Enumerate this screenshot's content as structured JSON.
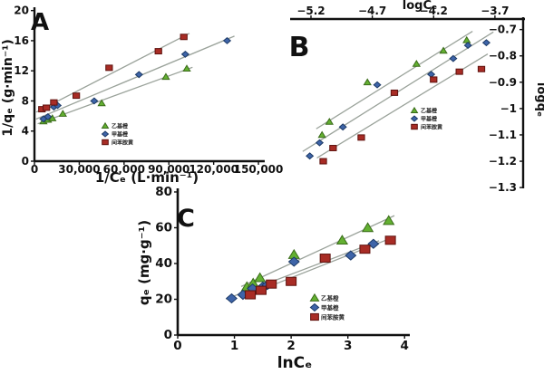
{
  "palette": {
    "axis": "#111111",
    "trendline": "#9aa29a",
    "green_fill": "#63b031",
    "green_stroke": "#3a6b1a",
    "blue_fill": "#3e64a8",
    "blue_stroke": "#1c3a66",
    "red_fill": "#a82c25",
    "red_stroke": "#5e120e"
  },
  "legend_labels": [
    "乙基橙",
    "甲基橙",
    "间苯胺黄"
  ],
  "chart_data": [
    {
      "id": "A",
      "panel_letter": "A",
      "type": "scatter",
      "xlabel": "1/Cₑ (L·min⁻¹)",
      "ylabel": "1/qₑ (g·min⁻¹)",
      "xlim": [
        0,
        153000
      ],
      "ylim": [
        20.2,
        0
      ],
      "xticks": [
        0,
        30000,
        60000,
        90000,
        120000,
        150000
      ],
      "xtick_labels": [
        "0",
        "30,000",
        "60,000",
        "90,000",
        "120,000",
        "150,000"
      ],
      "yticks": [
        0,
        4,
        8,
        12,
        16,
        20
      ],
      "ytick_labels": [
        "0",
        "4",
        "8",
        "12",
        "16",
        "20"
      ],
      "grid": false,
      "legend_position": "inside-bottom-center",
      "series": [
        {
          "name": "乙基橙",
          "marker": "triangle",
          "fill": "#63b031",
          "stroke": "#3a6b1a",
          "points": [
            [
              6000,
              5.3
            ],
            [
              9000,
              5.5
            ],
            [
              12000,
              5.7
            ],
            [
              19000,
              6.3
            ],
            [
              45000,
              7.7
            ],
            [
              88000,
              11.2
            ],
            [
              102000,
              12.3
            ]
          ]
        },
        {
          "name": "甲基橙",
          "marker": "diamond",
          "fill": "#3e64a8",
          "stroke": "#1c3a66",
          "points": [
            [
              6000,
              5.6
            ],
            [
              9000,
              5.9
            ],
            [
              13000,
              7.2
            ],
            [
              15500,
              7.4
            ],
            [
              40000,
              8.0
            ],
            [
              70000,
              11.5
            ],
            [
              101000,
              14.2
            ],
            [
              129000,
              16.0
            ]
          ]
        },
        {
          "name": "间苯胺黄",
          "marker": "square",
          "fill": "#a82c25",
          "stroke": "#5e120e",
          "points": [
            [
              5000,
              6.9
            ],
            [
              8000,
              7.1
            ],
            [
              13000,
              7.8
            ],
            [
              28000,
              8.7
            ],
            [
              50000,
              12.4
            ],
            [
              83000,
              14.6
            ],
            [
              100000,
              16.5
            ]
          ]
        }
      ]
    },
    {
      "id": "B",
      "panel_letter": "B",
      "type": "scatter",
      "xlabel": "logCₑ",
      "ylabel": "logqₑ",
      "xlim": [
        -5.37,
        -3.47
      ],
      "ylim": [
        -0.66,
        -1.303
      ],
      "xticks": [
        -5.2,
        -4.7,
        -4.2,
        -3.7
      ],
      "xtick_labels": [
        "−5.2",
        "−4.7",
        "−4.2",
        "−3.7"
      ],
      "yticks": [
        -0.7,
        -0.8,
        -0.9,
        -1.0,
        -1.1,
        -1.2,
        -1.3
      ],
      "ytick_labels": [
        "−0.7",
        "−0.8",
        "−0.9",
        "−1",
        "−1.1",
        "−1.2",
        "−1.3"
      ],
      "grid": false,
      "axis_x_position": "top",
      "axis_y_position": "right",
      "legend_position": "inside-middle-right",
      "series": [
        {
          "name": "乙基橙",
          "marker": "triangle",
          "fill": "#63b031",
          "stroke": "#3a6b1a",
          "points": [
            [
              -5.11,
              -1.1
            ],
            [
              -5.05,
              -1.05
            ],
            [
              -4.74,
              -0.9
            ],
            [
              -4.34,
              -0.83
            ],
            [
              -4.12,
              -0.78
            ],
            [
              -3.93,
              -0.74
            ]
          ]
        },
        {
          "name": "甲基橙",
          "marker": "diamond",
          "fill": "#3e64a8",
          "stroke": "#1c3a66",
          "points": [
            [
              -5.21,
              -1.18
            ],
            [
              -5.13,
              -1.13
            ],
            [
              -4.94,
              -1.07
            ],
            [
              -4.66,
              -0.91
            ],
            [
              -4.22,
              -0.87
            ],
            [
              -4.04,
              -0.81
            ],
            [
              -3.92,
              -0.76
            ],
            [
              -3.77,
              -0.75
            ]
          ]
        },
        {
          "name": "间苯胺黄",
          "marker": "square",
          "fill": "#a82c25",
          "stroke": "#5e120e",
          "points": [
            [
              -5.1,
              -1.2
            ],
            [
              -5.02,
              -1.15
            ],
            [
              -4.79,
              -1.11
            ],
            [
              -4.52,
              -0.94
            ],
            [
              -4.2,
              -0.89
            ],
            [
              -3.99,
              -0.86
            ],
            [
              -3.81,
              -0.85
            ]
          ]
        }
      ]
    },
    {
      "id": "C",
      "panel_letter": "C",
      "type": "scatter",
      "xlabel": "lnCₑ",
      "ylabel": "qₑ (mg·g⁻¹)",
      "xlim": [
        0,
        4.06
      ],
      "ylim": [
        81,
        0
      ],
      "xticks": [
        0,
        1,
        2,
        3,
        4
      ],
      "xtick_labels": [
        "0",
        "1",
        "2",
        "3",
        "4"
      ],
      "yticks": [
        0,
        20,
        40,
        60,
        80
      ],
      "ytick_labels": [
        "0",
        "20",
        "40",
        "60",
        "80"
      ],
      "grid": false,
      "legend_position": "inside-middle-right",
      "series": [
        {
          "name": "乙基橙",
          "marker": "triangle",
          "fill": "#63b031",
          "stroke": "#3a6b1a",
          "points": [
            [
              1.22,
              27
            ],
            [
              1.33,
              29
            ],
            [
              1.45,
              32
            ],
            [
              2.05,
              45
            ],
            [
              2.9,
              53
            ],
            [
              3.35,
              60
            ],
            [
              3.72,
              64
            ]
          ]
        },
        {
          "name": "甲基橙",
          "marker": "diamond",
          "fill": "#3e64a8",
          "stroke": "#1c3a66",
          "points": [
            [
              0.95,
              20.5
            ],
            [
              1.15,
              22.5
            ],
            [
              1.32,
              26
            ],
            [
              1.5,
              27
            ],
            [
              1.58,
              28
            ],
            [
              2.05,
              41
            ],
            [
              3.05,
              44.5
            ],
            [
              3.45,
              51
            ]
          ]
        },
        {
          "name": "间苯胺黄",
          "marker": "square",
          "fill": "#a82c25",
          "stroke": "#5e120e",
          "points": [
            [
              1.28,
              22.5
            ],
            [
              1.47,
              25
            ],
            [
              1.65,
              28.5
            ],
            [
              2.0,
              30
            ],
            [
              2.6,
              43
            ],
            [
              3.3,
              48
            ],
            [
              3.75,
              53
            ]
          ]
        }
      ]
    }
  ]
}
